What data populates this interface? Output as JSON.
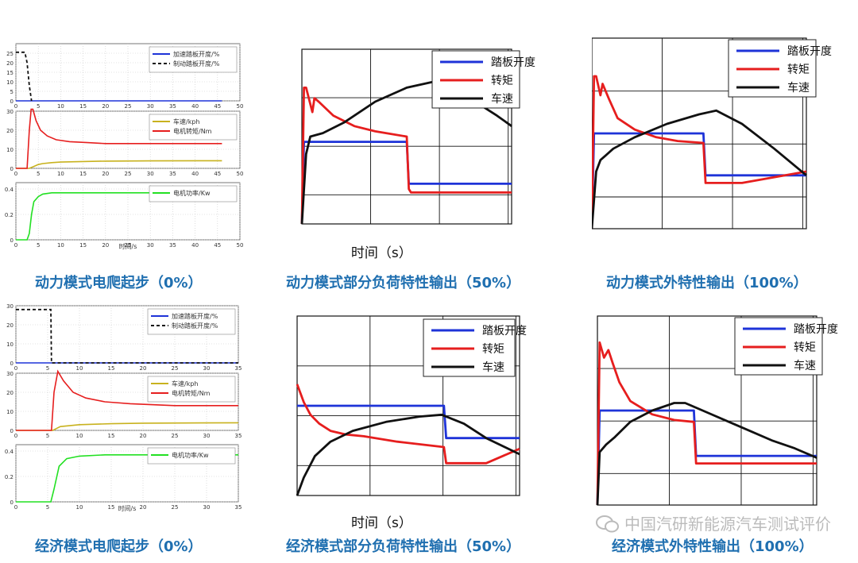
{
  "captions": {
    "p1": "动力模式电爬起步（0%）",
    "p2": "动力模式部分负荷特性输出（50%）",
    "p3": "动力模式外特性输出（100%）",
    "p4": "经济模式电爬起步（0%）",
    "p5": "经济模式部分负荷特性输出（50%）",
    "p6": "经济模式外特性输出（100%）"
  },
  "watermark": "中国汽研新能源汽车测试评价",
  "colors": {
    "blue": "#1e33d8",
    "red": "#e61e1e",
    "black": "#111111",
    "yellow": "#c8b21e",
    "green": "#22e022",
    "caption": "#1f6fb0"
  },
  "chart_data": [
    {
      "panel": "dynamic-creep",
      "type": "line",
      "xlabel": "时间/s",
      "xlim": [
        0,
        50
      ],
      "subplots": [
        {
          "ylim": [
            0,
            30
          ],
          "yticks": [
            0,
            5,
            10,
            15,
            20,
            25
          ],
          "xticks": [
            0,
            5,
            10,
            15,
            20,
            25,
            30,
            35,
            40,
            45,
            50
          ],
          "series": [
            {
              "name": "加速踏板开度/%",
              "style": "solid",
              "color": "blue",
              "x": [
                0,
                46
              ],
              "y": [
                0,
                0
              ]
            },
            {
              "name": "制动踏板开度/%",
              "style": "dashed",
              "color": "black",
              "x": [
                0,
                1,
                2,
                2.5,
                3,
                3.5
              ],
              "y": [
                25.5,
                25.5,
                25.5,
                20,
                8,
                0
              ]
            }
          ]
        },
        {
          "ylim": [
            0,
            30
          ],
          "yticks": [
            0,
            10,
            20,
            30
          ],
          "xticks": [
            0,
            5,
            10,
            15,
            20,
            25,
            30,
            35,
            40,
            45,
            50
          ],
          "series": [
            {
              "name": "车速/kph",
              "color": "yellow",
              "x": [
                0,
                3,
                4,
                5,
                6,
                8,
                10,
                15,
                20,
                30,
                46
              ],
              "y": [
                0,
                0,
                1,
                2,
                2.5,
                3,
                3.3,
                3.6,
                3.8,
                3.9,
                4
              ]
            },
            {
              "name": "电机转矩/Nm",
              "color": "red",
              "x": [
                0,
                2.5,
                3,
                3.4,
                3.8,
                4.5,
                5.5,
                7,
                9,
                12,
                16,
                20,
                30,
                46
              ],
              "y": [
                0,
                0,
                20,
                31,
                31,
                25,
                20,
                17,
                15,
                14,
                13.5,
                13,
                13,
                13
              ]
            }
          ]
        },
        {
          "ylim": [
            0,
            0.45
          ],
          "yticks": [
            0,
            0.2,
            0.4
          ],
          "xticks": [
            0,
            5,
            10,
            15,
            20,
            25,
            30,
            35,
            40,
            45,
            50
          ],
          "series": [
            {
              "name": "电机功率/Kw",
              "color": "green",
              "x": [
                0,
                2.5,
                3,
                3.5,
                4,
                5,
                6,
                8,
                10,
                20,
                46
              ],
              "y": [
                0,
                0,
                0.05,
                0.2,
                0.3,
                0.34,
                0.36,
                0.37,
                0.37,
                0.37,
                0.37
              ]
            }
          ]
        }
      ]
    },
    {
      "panel": "dynamic-partial",
      "type": "line",
      "xlabel": "时间（s）",
      "series": [
        {
          "name": "踏板开度",
          "color": "blue",
          "x": [
            0,
            1,
            50,
            51,
            100
          ],
          "y": [
            0,
            47,
            47,
            23,
            23
          ]
        },
        {
          "name": "转矩",
          "color": "red",
          "x": [
            0,
            1,
            2,
            5,
            6,
            8,
            15,
            25,
            35,
            50,
            51,
            52,
            70,
            100
          ],
          "y": [
            0,
            78,
            78,
            64,
            72,
            70,
            62,
            56,
            53,
            50,
            20,
            18,
            18,
            18
          ]
        },
        {
          "name": "车速",
          "color": "black",
          "x": [
            0,
            2,
            4,
            10,
            20,
            35,
            50,
            65,
            80,
            93,
            100
          ],
          "y": [
            0,
            40,
            50,
            52,
            58,
            70,
            78,
            82,
            72,
            62,
            56
          ]
        }
      ]
    },
    {
      "panel": "dynamic-full",
      "type": "line",
      "series": [
        {
          "name": "踏板开度",
          "color": "blue",
          "x": [
            0,
            1,
            52,
            53,
            100
          ],
          "y": [
            0,
            50,
            50,
            28,
            28
          ]
        },
        {
          "name": "转矩",
          "color": "red",
          "x": [
            0,
            1,
            2,
            4,
            5,
            8,
            12,
            20,
            30,
            40,
            52,
            53,
            70,
            100
          ],
          "y": [
            0,
            80,
            80,
            70,
            76,
            68,
            58,
            52,
            48,
            46,
            45,
            24,
            24,
            30
          ]
        },
        {
          "name": "车速",
          "color": "black",
          "x": [
            0,
            2,
            4,
            10,
            20,
            35,
            50,
            58,
            70,
            85,
            100
          ],
          "y": [
            0,
            30,
            36,
            42,
            48,
            55,
            60,
            62,
            55,
            42,
            28
          ]
        }
      ]
    },
    {
      "panel": "economy-creep",
      "type": "line",
      "xlabel": "时间/s",
      "xlim": [
        0,
        35
      ],
      "subplots": [
        {
          "ylim": [
            0,
            30
          ],
          "yticks": [
            0,
            10,
            20,
            30
          ],
          "xticks": [
            0,
            5,
            10,
            15,
            20,
            25,
            30,
            35
          ],
          "series": [
            {
              "name": "加速踏板开度/%",
              "style": "solid",
              "color": "blue",
              "x": [
                0,
                35
              ],
              "y": [
                0,
                0
              ]
            },
            {
              "name": "制动踏板开度/%",
              "style": "dashed",
              "color": "black",
              "x": [
                0,
                3,
                5.5,
                5.6,
                35
              ],
              "y": [
                28,
                28,
                28,
                0,
                0
              ]
            }
          ]
        },
        {
          "ylim": [
            0,
            30
          ],
          "yticks": [
            0,
            10,
            20,
            30
          ],
          "xticks": [
            0,
            5,
            10,
            15,
            20,
            25,
            30,
            35
          ],
          "series": [
            {
              "name": "车速/kph",
              "color": "yellow",
              "x": [
                0,
                5.8,
                7,
                10,
                15,
                20,
                35
              ],
              "y": [
                0,
                0,
                2,
                3,
                3.5,
                3.8,
                4
              ]
            },
            {
              "name": "电机转矩/Nm",
              "color": "red",
              "x": [
                0,
                5.6,
                6,
                6.6,
                7.5,
                9,
                11,
                14,
                18,
                25,
                35
              ],
              "y": [
                0,
                0,
                20,
                31,
                26,
                20,
                17,
                15,
                14,
                13,
                13
              ]
            }
          ]
        },
        {
          "ylim": [
            0,
            0.45
          ],
          "yticks": [
            0,
            0.2,
            0.4
          ],
          "xticks": [
            0,
            5,
            10,
            15,
            20,
            25,
            30,
            35
          ],
          "series": [
            {
              "name": "电机功率/Kw",
              "color": "green",
              "x": [
                0,
                5.5,
                6,
                6.8,
                8,
                10,
                14,
                20,
                35
              ],
              "y": [
                0,
                0,
                0.1,
                0.28,
                0.34,
                0.36,
                0.37,
                0.37,
                0.37
              ]
            }
          ]
        }
      ]
    },
    {
      "panel": "economy-partial",
      "type": "line",
      "xlabel": "时间（s）",
      "series": [
        {
          "name": "踏板开度",
          "color": "blue",
          "x": [
            0,
            66,
            67,
            100
          ],
          "y": [
            50,
            50,
            32,
            32
          ]
        },
        {
          "name": "转矩",
          "color": "red",
          "x": [
            0,
            3,
            6,
            10,
            15,
            22,
            30,
            45,
            66,
            67,
            85,
            100
          ],
          "y": [
            62,
            52,
            45,
            40,
            36,
            34,
            33,
            30,
            27,
            18,
            18,
            26
          ]
        },
        {
          "name": "车速",
          "color": "black",
          "x": [
            0,
            3,
            8,
            15,
            25,
            40,
            55,
            65,
            75,
            85,
            100
          ],
          "y": [
            0,
            10,
            22,
            30,
            36,
            41,
            44,
            45,
            40,
            32,
            23
          ]
        }
      ]
    },
    {
      "panel": "economy-full",
      "type": "line",
      "series": [
        {
          "name": "踏板开度",
          "color": "blue",
          "x": [
            0,
            1,
            44,
            45,
            100
          ],
          "y": [
            0,
            50,
            50,
            26,
            26
          ]
        },
        {
          "name": "转矩",
          "color": "red",
          "x": [
            0,
            1,
            3,
            5,
            7,
            10,
            15,
            25,
            35,
            44,
            45,
            60,
            100
          ],
          "y": [
            0,
            86,
            78,
            82,
            75,
            65,
            55,
            48,
            45,
            44,
            22,
            22,
            22
          ]
        },
        {
          "name": "车速",
          "color": "black",
          "x": [
            0,
            1,
            4,
            8,
            15,
            25,
            35,
            40,
            50,
            60,
            70,
            80,
            90,
            100
          ],
          "y": [
            0,
            28,
            32,
            36,
            44,
            50,
            54,
            54,
            49,
            44,
            39,
            34,
            30,
            25
          ]
        }
      ]
    }
  ]
}
